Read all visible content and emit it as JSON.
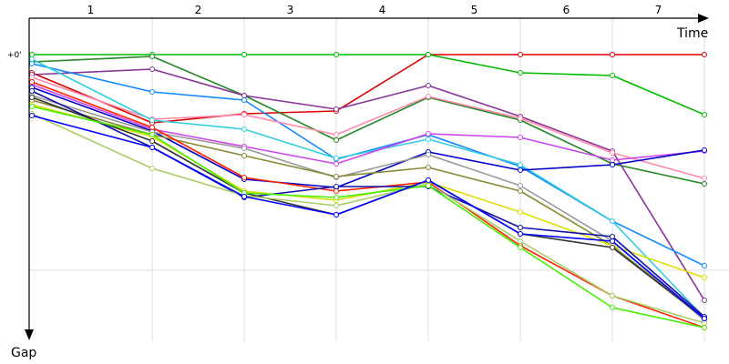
{
  "chart_data": {
    "type": "line",
    "x_axis_label": "Time",
    "y_axis_label": "Gap",
    "y_zero_label": "+0'",
    "x_ticks": [
      "1",
      "2",
      "3",
      "4",
      "5",
      "6",
      "7"
    ],
    "grid": true,
    "legend": "none",
    "y_range": [
      0,
      370
    ],
    "series": [
      {
        "color": "#dd0000",
        "values": [
          20,
          75,
          65,
          62,
          0,
          0,
          0,
          0
        ]
      },
      {
        "color": "#00bb00",
        "values": [
          0,
          0,
          0,
          0,
          0,
          20,
          23,
          66
        ]
      },
      {
        "color": "#228822",
        "values": [
          8,
          2,
          45,
          94,
          47,
          72,
          120,
          142
        ]
      },
      {
        "color": "#883399",
        "values": [
          22,
          16,
          45,
          60,
          34,
          68,
          106,
          270
        ]
      },
      {
        "color": "#1188ff",
        "values": [
          10,
          41,
          50,
          115,
          88,
          123,
          183,
          232
        ]
      },
      {
        "color": "#ff88aa",
        "values": [
          25,
          71,
          66,
          88,
          46,
          70,
          108,
          136
        ]
      },
      {
        "color": "#33ccdd",
        "values": [
          5,
          72,
          82,
          114,
          93,
          121,
          183,
          289
        ]
      },
      {
        "color": "#cc44ee",
        "values": [
          33,
          82,
          101,
          120,
          87,
          91,
          116,
          106
        ]
      },
      {
        "color": "#0000cc",
        "values": [
          36,
          84,
          137,
          146,
          107,
          127,
          121,
          105
        ]
      },
      {
        "color": "#999999",
        "values": [
          45,
          85,
          103,
          135,
          110,
          144,
          205,
          292
        ]
      },
      {
        "color": "#888833",
        "values": [
          50,
          88,
          111,
          134,
          124,
          150,
          210,
          290
        ]
      },
      {
        "color": "#dddd00",
        "values": [
          55,
          90,
          150,
          160,
          140,
          173,
          210,
          245
        ]
      },
      {
        "color": "#ff2200",
        "values": [
          30,
          80,
          135,
          150,
          140,
          210,
          265,
          300
        ]
      },
      {
        "color": "#1111aa",
        "values": [
          40,
          102,
          157,
          145,
          145,
          190,
          200,
          288
        ]
      },
      {
        "color": "#333333",
        "values": [
          47,
          95,
          152,
          176,
          138,
          197,
          212,
          290
        ]
      },
      {
        "color": "#aacc66",
        "values": [
          65,
          125,
          155,
          166,
          142,
          205,
          265,
          295
        ]
      },
      {
        "color": "#44ee00",
        "values": [
          57,
          88,
          152,
          157,
          144,
          212,
          278,
          300
        ]
      },
      {
        "color": "#0000ff",
        "values": [
          67,
          102,
          156,
          176,
          138,
          197,
          205,
          290
        ]
      }
    ]
  }
}
